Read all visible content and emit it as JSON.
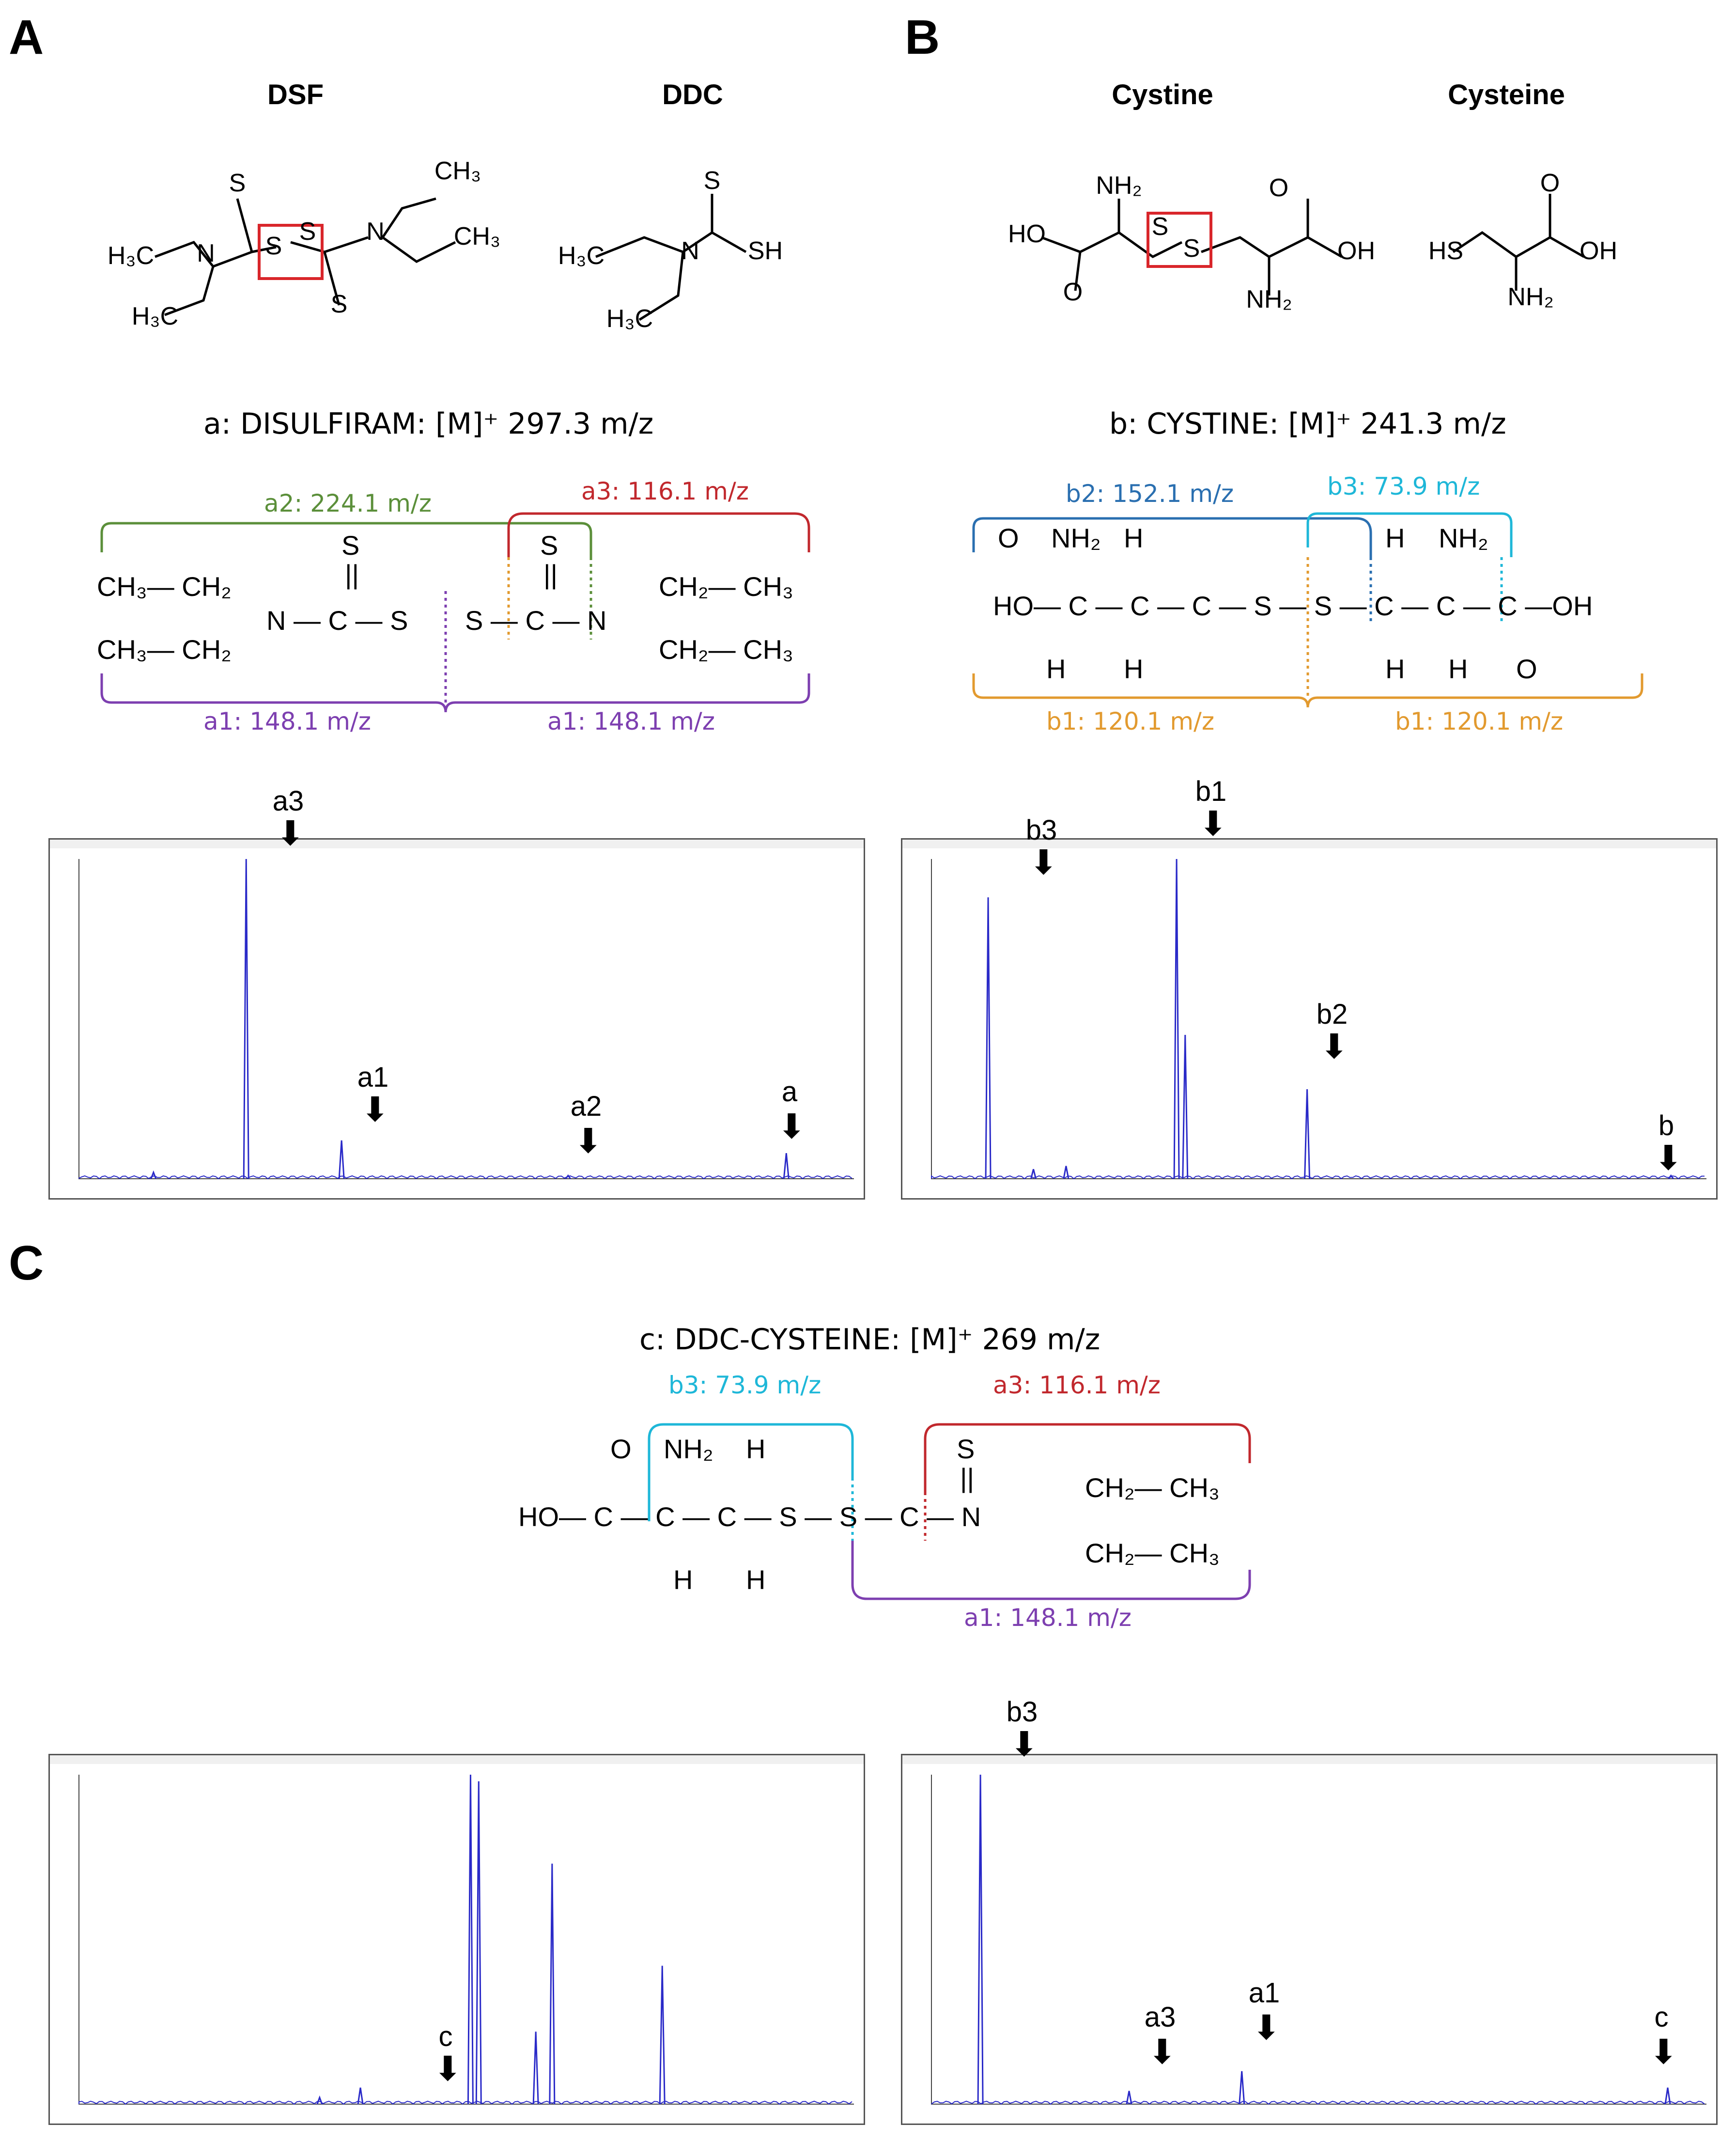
{
  "panels": {
    "A": "A",
    "B": "B",
    "C": "C"
  },
  "molecules": {
    "dsf": "DSF",
    "ddc": "DDC",
    "cystine": "Cystine",
    "cysteine": "Cysteine"
  },
  "ions": {
    "a": "a: DISULFIRAM: [M]⁺ 297.3 m/z",
    "b": "b: CYSTINE: [M]⁺ 241.3 m/z",
    "c": "c: DDC-CYSTEINE: [M]⁺ 269 m/z"
  },
  "fragments": {
    "a1": "a1: 148.1 m/z",
    "a2": "a2: 224.1 m/z",
    "a3": "a3: 116.1 m/z",
    "b1": "b1: 120.1 m/z",
    "b2": "b2: 152.1 m/z",
    "b3": "b3: 73.9 m/z"
  },
  "colors": {
    "a1": "#7d3fb0",
    "a2": "#5b8f3a",
    "a3": "#c1282d",
    "b1": "#e29a2f",
    "b2": "#2a6fb0",
    "b3": "#1eb7d8",
    "spectrum": "#2a2ac8",
    "box": "#d9262b"
  },
  "peak_labels": {
    "A": [
      "a3",
      "a1",
      "a2",
      "a"
    ],
    "B": [
      "b3",
      "b1",
      "b2",
      "b"
    ],
    "C_left": [
      "c"
    ],
    "C_right": [
      "b3",
      "a3",
      "a1",
      "c"
    ]
  },
  "chart_data": [
    {
      "type": "line",
      "panel": "A",
      "xlim": [
        60,
        320
      ],
      "peaks_x": [
        85,
        116.1,
        148.1,
        224.1,
        297.3
      ],
      "peaks_y": [
        0.02,
        1.0,
        0.12,
        0.01,
        0.08
      ]
    },
    {
      "type": "line",
      "panel": "B",
      "xlim": [
        60,
        250
      ],
      "peaks_x": [
        73.9,
        85,
        93,
        120.1,
        122.2,
        152.1,
        241.3
      ],
      "peaks_y": [
        0.88,
        0.03,
        0.04,
        1.0,
        0.45,
        0.28,
        0.01
      ]
    },
    {
      "type": "line",
      "panel": "C-left",
      "xlim": [
        210,
        400
      ],
      "peaks_x": [
        269,
        279,
        306,
        308,
        322,
        326,
        353
      ],
      "peaks_y": [
        0.02,
        0.05,
        1.0,
        0.98,
        0.22,
        0.73,
        0.42
      ]
    },
    {
      "type": "line",
      "panel": "C-right",
      "xlim": [
        60,
        280
      ],
      "peaks_x": [
        73.9,
        116.1,
        148.1,
        269
      ],
      "peaks_y": [
        1.0,
        0.04,
        0.1,
        0.05
      ]
    }
  ]
}
